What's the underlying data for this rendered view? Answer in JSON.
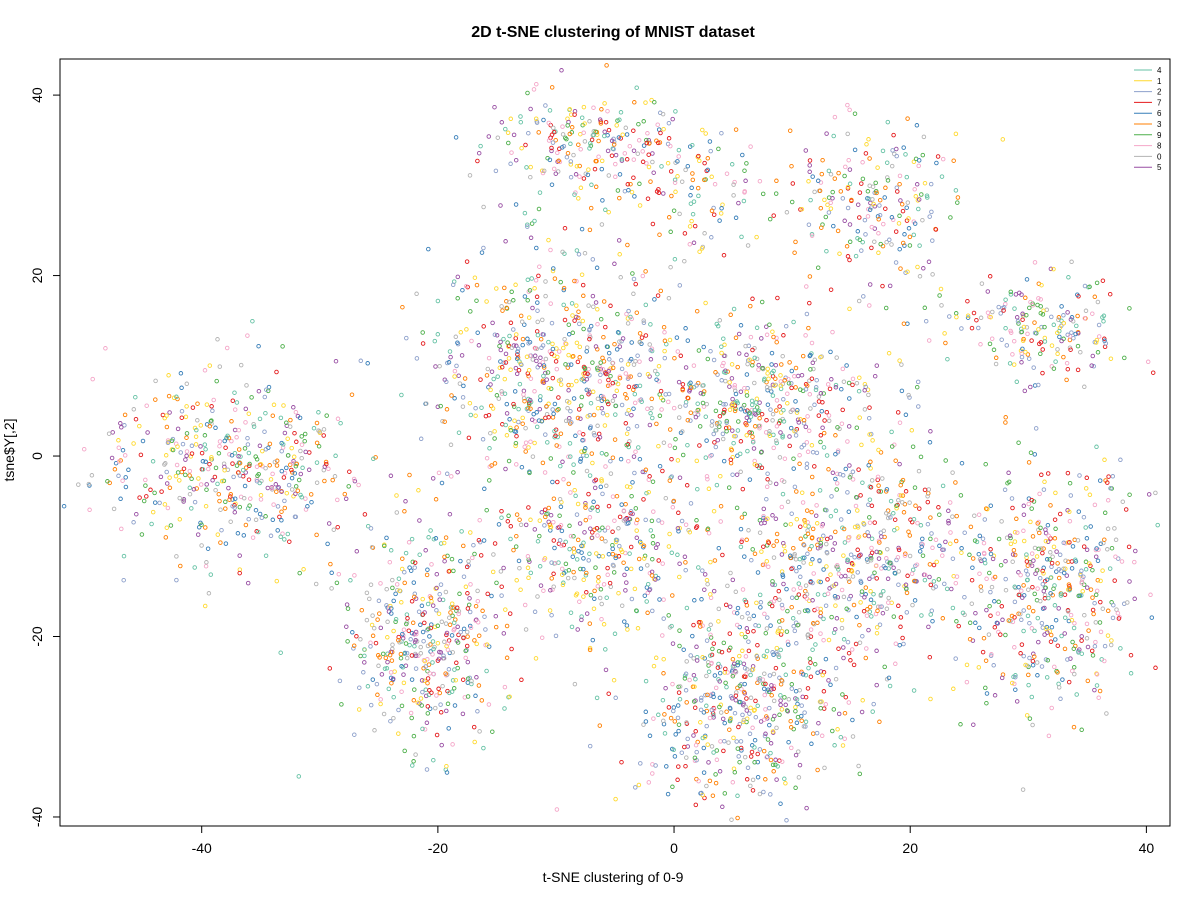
{
  "chart_data": {
    "type": "scatter",
    "title": "2D t-SNE clustering of MNIST dataset",
    "xlabel": "t-SNE clustering of 0-9",
    "ylabel": "tsne$Y[,2]",
    "xlim": [
      -52,
      42
    ],
    "ylim": [
      -41,
      44
    ],
    "xticks": [
      -40,
      -20,
      0,
      20,
      40
    ],
    "yticks": [
      -40,
      -20,
      0,
      20,
      40
    ],
    "grid": false,
    "legend_position": "top-right",
    "marker": "open-circle",
    "series": [
      {
        "name": "4",
        "color": "#66c2a5"
      },
      {
        "name": "1",
        "color": "#ffd92f"
      },
      {
        "name": "2",
        "color": "#8da0cb"
      },
      {
        "name": "7",
        "color": "#e41a1c"
      },
      {
        "name": "6",
        "color": "#377eb8"
      },
      {
        "name": "3",
        "color": "#ff7f00"
      },
      {
        "name": "9",
        "color": "#4daf4a"
      },
      {
        "name": "8",
        "color": "#f4a6c8"
      },
      {
        "name": "0",
        "color": "#b3b3b3"
      },
      {
        "name": "5",
        "color": "#984ea3"
      }
    ],
    "clusters": [
      {
        "cx": -38,
        "cy": -1,
        "sx": 5.5,
        "sy": 5.5,
        "n": 420
      },
      {
        "cx": -32,
        "cy": -1,
        "sx": 2.5,
        "sy": 2.5,
        "n": 60
      },
      {
        "cx": -7,
        "cy": 34,
        "sx": 4.5,
        "sy": 3.0,
        "n": 240
      },
      {
        "cx": 2,
        "cy": 30,
        "sx": 3.0,
        "sy": 4.0,
        "n": 90
      },
      {
        "cx": 17,
        "cy": 28,
        "sx": 3.5,
        "sy": 5.0,
        "n": 230
      },
      {
        "cx": 31,
        "cy": 14,
        "sx": 4.0,
        "sy": 2.8,
        "n": 200
      },
      {
        "cx": -10,
        "cy": 9,
        "sx": 5.5,
        "sy": 7.0,
        "n": 640
      },
      {
        "cx": 7,
        "cy": 6,
        "sx": 6.0,
        "sy": 4.5,
        "n": 520
      },
      {
        "cx": -21,
        "cy": -20,
        "sx": 3.5,
        "sy": 6.0,
        "n": 450
      },
      {
        "cx": -6,
        "cy": -11,
        "sx": 4.5,
        "sy": 4.5,
        "n": 330
      },
      {
        "cx": 15,
        "cy": -11,
        "sx": 6.0,
        "sy": 6.0,
        "n": 640
      },
      {
        "cx": 6,
        "cy": -27,
        "sx": 4.5,
        "sy": 5.5,
        "n": 520
      },
      {
        "cx": 32,
        "cy": -15,
        "sx": 3.5,
        "sy": 7.0,
        "n": 440
      }
    ]
  }
}
